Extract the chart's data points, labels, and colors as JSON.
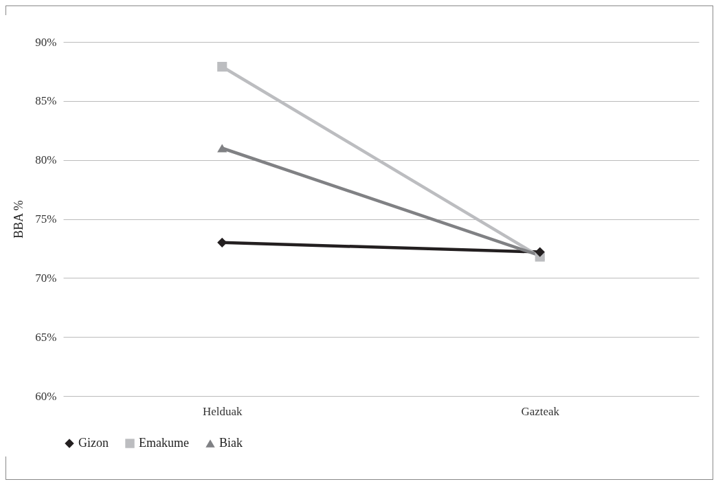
{
  "chart_data": {
    "type": "line",
    "ylabel": "BBA %",
    "categories": [
      "Helduak",
      "Gazteak"
    ],
    "series": [
      {
        "name": "Gizon",
        "color": "#231f20",
        "marker": "diamond",
        "values": [
          73.0,
          72.2
        ]
      },
      {
        "name": "Emakume",
        "color": "#bcbdc0",
        "marker": "square",
        "values": [
          87.9,
          71.8
        ]
      },
      {
        "name": "Biak",
        "color": "#808184",
        "marker": "triangle",
        "values": [
          81.0,
          71.9
        ]
      }
    ],
    "ylim": [
      60,
      90
    ],
    "yticks": [
      {
        "value": 60,
        "label": "60%"
      },
      {
        "value": 65,
        "label": "65%"
      },
      {
        "value": 70,
        "label": "70%"
      },
      {
        "value": 75,
        "label": "75%"
      },
      {
        "value": 80,
        "label": "80%"
      },
      {
        "value": 85,
        "label": "85%"
      },
      {
        "value": 90,
        "label": "90%"
      }
    ],
    "grid": "y",
    "legend": "bottom",
    "line_style": "solid"
  }
}
